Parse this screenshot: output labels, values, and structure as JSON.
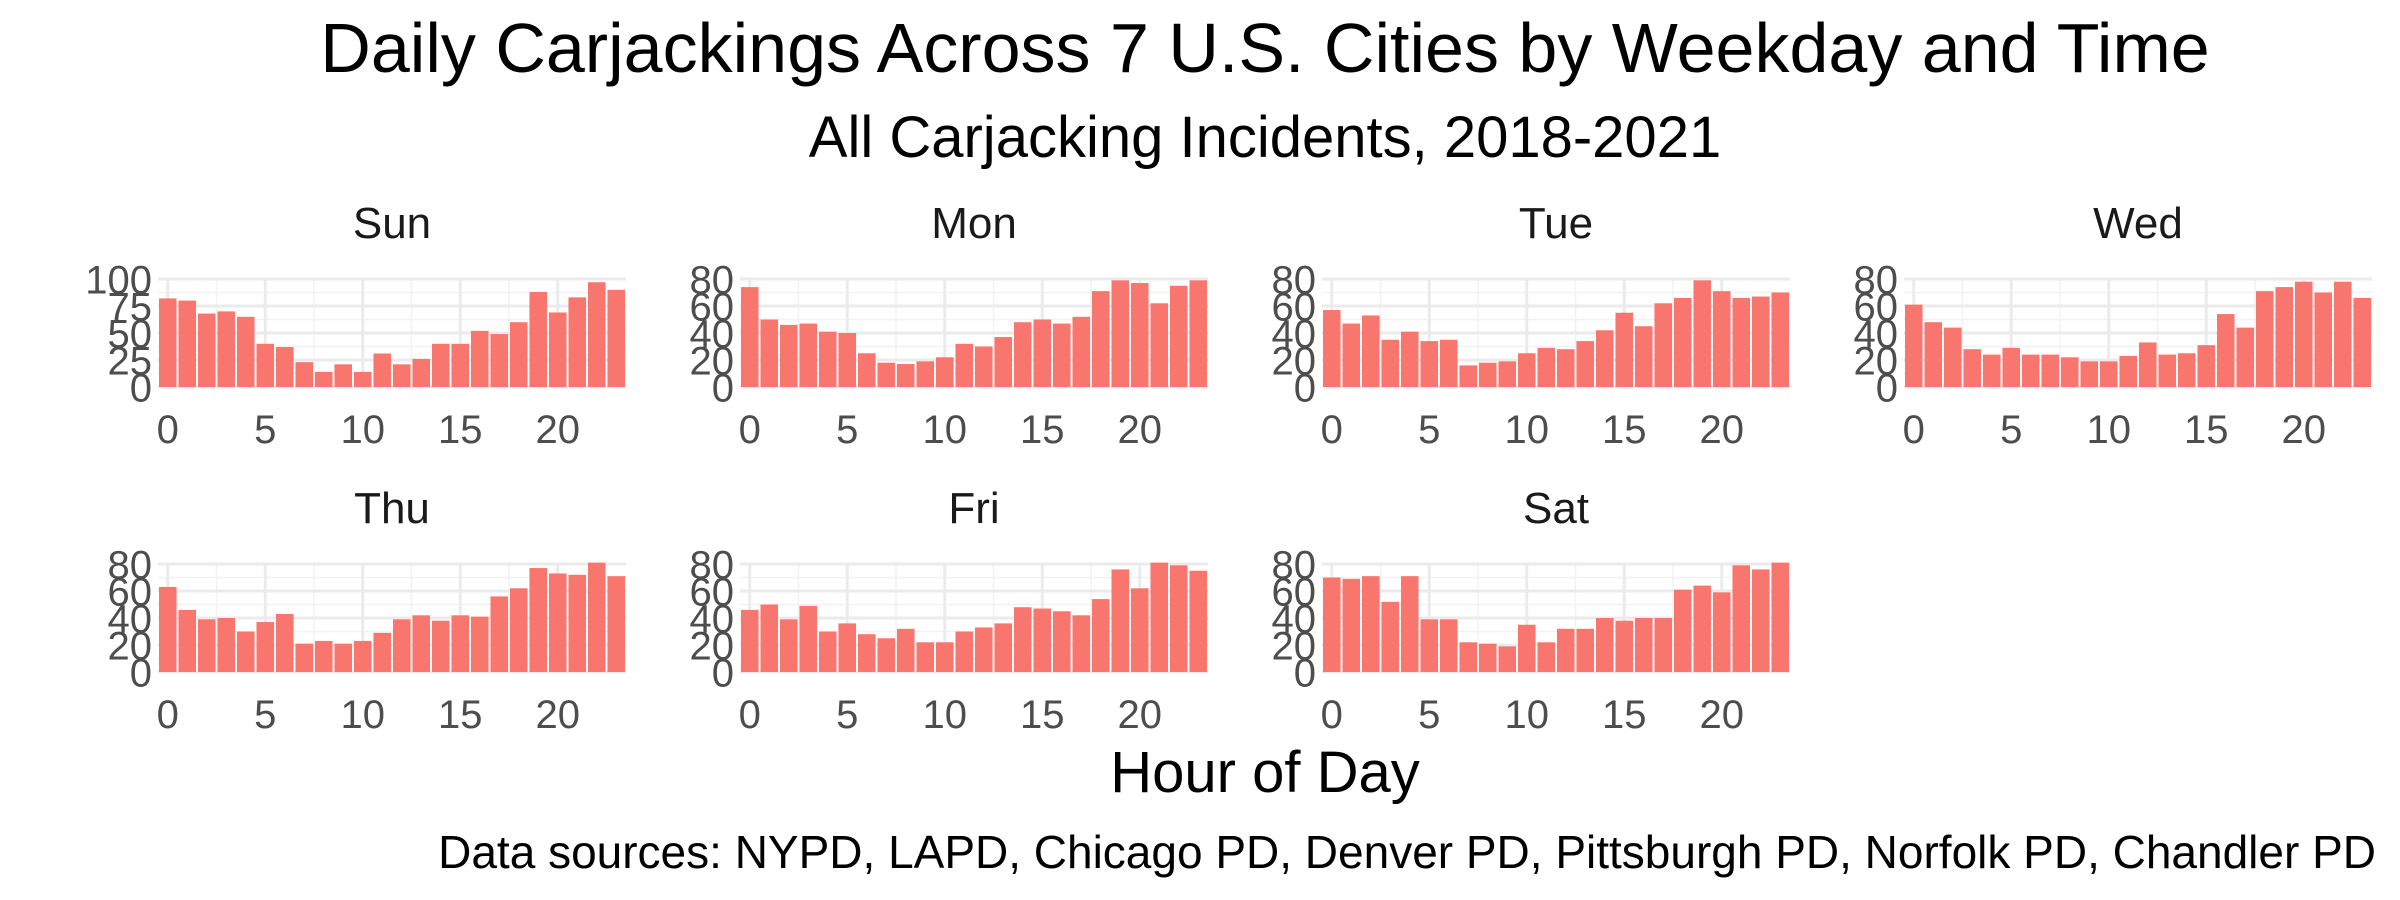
{
  "chart_data": {
    "type": "bar",
    "layout": "faceted",
    "title": "Daily Carjackings Across 7 U.S. Cities by Weekday and Time",
    "subtitle": "All Carjacking Incidents, 2018-2021",
    "xlabel": "Hour of Day",
    "ylabel": "",
    "caption": "Data sources: NYPD, LAPD, Chicago PD, Denver PD, Pittsburgh PD, Norfolk PD, Chandler PD",
    "bar_color": "#F8766D",
    "grid": true,
    "x": [
      0,
      1,
      2,
      3,
      4,
      5,
      6,
      7,
      8,
      9,
      10,
      11,
      12,
      13,
      14,
      15,
      16,
      17,
      18,
      19,
      20,
      21,
      22,
      23
    ],
    "x_ticks": [
      0,
      5,
      10,
      15,
      20
    ],
    "facets": [
      {
        "label": "Sun",
        "ylim": [
          0,
          100
        ],
        "y_ticks": [
          0,
          25,
          50,
          75,
          100
        ],
        "values": [
          82,
          80,
          68,
          70,
          65,
          40,
          37,
          23,
          14,
          21,
          14,
          31,
          21,
          26,
          40,
          40,
          52,
          49,
          60,
          88,
          69,
          83,
          97,
          90
        ]
      },
      {
        "label": "Mon",
        "ylim": [
          0,
          80
        ],
        "y_ticks": [
          0,
          20,
          40,
          60,
          80
        ],
        "values": [
          74,
          50,
          46,
          47,
          41,
          40,
          25,
          18,
          17,
          19,
          22,
          32,
          30,
          37,
          48,
          50,
          47,
          52,
          71,
          79,
          77,
          62,
          75,
          79
        ]
      },
      {
        "label": "Tue",
        "ylim": [
          0,
          80
        ],
        "y_ticks": [
          0,
          20,
          40,
          60,
          80
        ],
        "values": [
          57,
          47,
          53,
          35,
          41,
          34,
          35,
          16,
          18,
          19,
          25,
          29,
          28,
          34,
          42,
          55,
          45,
          62,
          66,
          79,
          71,
          66,
          67,
          70
        ]
      },
      {
        "label": "Wed",
        "ylim": [
          0,
          80
        ],
        "y_ticks": [
          0,
          20,
          40,
          60,
          80
        ],
        "values": [
          61,
          48,
          44,
          28,
          24,
          29,
          24,
          24,
          22,
          19,
          19,
          23,
          33,
          24,
          25,
          31,
          54,
          44,
          71,
          74,
          78,
          70,
          78,
          66
        ]
      },
      {
        "label": "Thu",
        "ylim": [
          0,
          80
        ],
        "y_ticks": [
          0,
          20,
          40,
          60,
          80
        ],
        "values": [
          63,
          46,
          39,
          40,
          30,
          37,
          43,
          21,
          23,
          21,
          23,
          29,
          39,
          42,
          38,
          42,
          41,
          56,
          62,
          77,
          73,
          72,
          81,
          71
        ]
      },
      {
        "label": "Fri",
        "ylim": [
          0,
          80
        ],
        "y_ticks": [
          0,
          20,
          40,
          60,
          80
        ],
        "values": [
          46,
          50,
          39,
          49,
          30,
          36,
          28,
          25,
          32,
          22,
          22,
          30,
          33,
          36,
          48,
          47,
          45,
          42,
          54,
          76,
          62,
          81,
          79,
          75
        ]
      },
      {
        "label": "Sat",
        "ylim": [
          0,
          80
        ],
        "y_ticks": [
          0,
          20,
          40,
          60,
          80
        ],
        "values": [
          70,
          69,
          71,
          52,
          71,
          39,
          39,
          22,
          21,
          19,
          35,
          22,
          32,
          32,
          40,
          38,
          40,
          40,
          61,
          64,
          59,
          79,
          76,
          81
        ]
      }
    ]
  }
}
